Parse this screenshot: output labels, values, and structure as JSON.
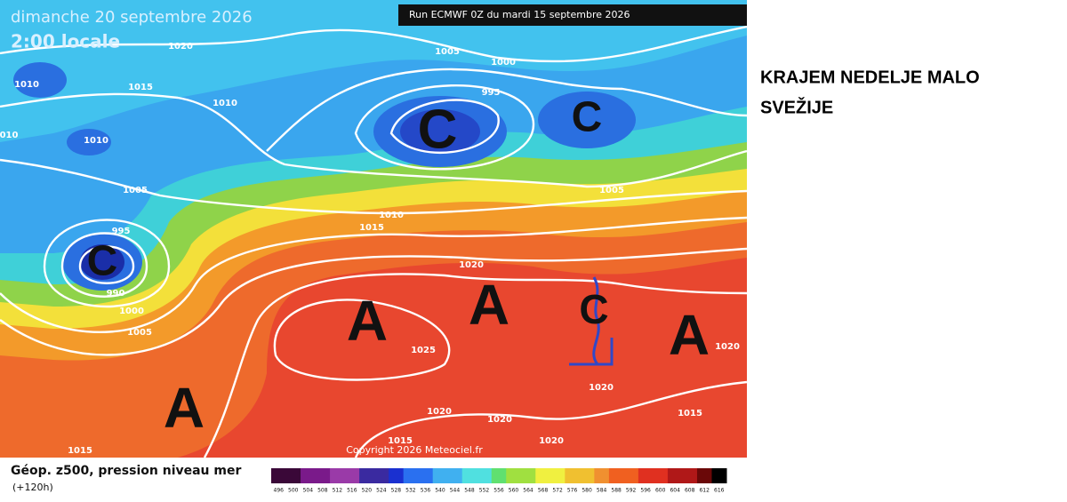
{
  "map": {
    "date": "dimanche 20 septembre 2026",
    "time": "2:00 locale",
    "run": "Run ECMWF 0Z du mardi 15 septembre 2026",
    "copyright": "Copyright 2026 Meteociel.fr",
    "isobar_labels": [
      "1020",
      "1005",
      "1000",
      "1010",
      "1015",
      "1010",
      "995",
      "010",
      "1010",
      "1005",
      "1005",
      "1010",
      "1015",
      "995",
      "990",
      "1000",
      "1005",
      "1020",
      "1025",
      "1020",
      "1020",
      "1020",
      "1020",
      "1015",
      "1015",
      "1015",
      "1020"
    ],
    "systems": [
      "C",
      "C",
      "C",
      "C",
      "A",
      "A",
      "A",
      "A"
    ]
  },
  "legend": {
    "caption": "Géop. z500, pression niveau mer",
    "lead_time": "(+120h)",
    "scale": [
      496,
      500,
      504,
      508,
      512,
      516,
      520,
      524,
      528,
      532,
      536,
      540,
      544,
      548,
      552,
      556,
      560,
      564,
      568,
      572,
      576,
      580,
      584,
      588,
      592,
      596,
      600,
      604,
      608,
      612,
      616
    ]
  },
  "heading": {
    "lines": [
      "KRAJEM NEDELJE MALO",
      "SVEŽIJE"
    ]
  }
}
